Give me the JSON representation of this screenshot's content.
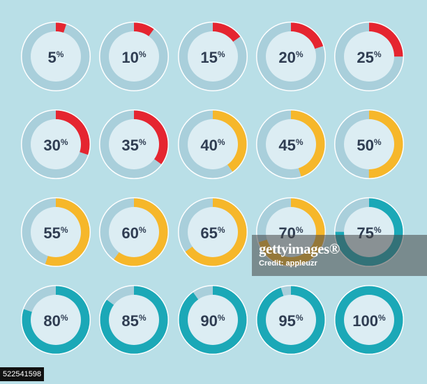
{
  "colors": {
    "background": "#b9dfe7",
    "outer_ring": "#ffffff",
    "track": "#a9cfdb",
    "inner_disc": "#dcedf3",
    "label_text": "#2f3d52",
    "red": "#e52530",
    "yellow": "#f6b72a",
    "teal": "#1ba8b7"
  },
  "charts": [
    {
      "label": "5",
      "unit": "%",
      "value": 5,
      "color": "red"
    },
    {
      "label": "10",
      "unit": "%",
      "value": 10,
      "color": "red"
    },
    {
      "label": "15",
      "unit": "%",
      "value": 15,
      "color": "red"
    },
    {
      "label": "20",
      "unit": "%",
      "value": 20,
      "color": "red"
    },
    {
      "label": "25",
      "unit": "%",
      "value": 25,
      "color": "red"
    },
    {
      "label": "30",
      "unit": "%",
      "value": 30,
      "color": "red"
    },
    {
      "label": "35",
      "unit": "%",
      "value": 35,
      "color": "red"
    },
    {
      "label": "40",
      "unit": "%",
      "value": 40,
      "color": "yellow"
    },
    {
      "label": "45",
      "unit": "%",
      "value": 45,
      "color": "yellow"
    },
    {
      "label": "50",
      "unit": "%",
      "value": 50,
      "color": "yellow"
    },
    {
      "label": "55",
      "unit": "%",
      "value": 55,
      "color": "yellow"
    },
    {
      "label": "60",
      "unit": "%",
      "value": 60,
      "color": "yellow"
    },
    {
      "label": "65",
      "unit": "%",
      "value": 65,
      "color": "yellow"
    },
    {
      "label": "70",
      "unit": "%",
      "value": 70,
      "color": "yellow"
    },
    {
      "label": "75",
      "unit": "%",
      "value": 75,
      "color": "teal"
    },
    {
      "label": "80",
      "unit": "%",
      "value": 80,
      "color": "teal"
    },
    {
      "label": "85",
      "unit": "%",
      "value": 85,
      "color": "teal"
    },
    {
      "label": "90",
      "unit": "%",
      "value": 90,
      "color": "teal"
    },
    {
      "label": "95",
      "unit": "%",
      "value": 95,
      "color": "teal"
    },
    {
      "label": "100",
      "unit": "%",
      "value": 100,
      "color": "teal"
    }
  ],
  "watermark": {
    "title": "gettyimages®",
    "credit": "Credit: appleuzr"
  },
  "image_id": "522541598"
}
